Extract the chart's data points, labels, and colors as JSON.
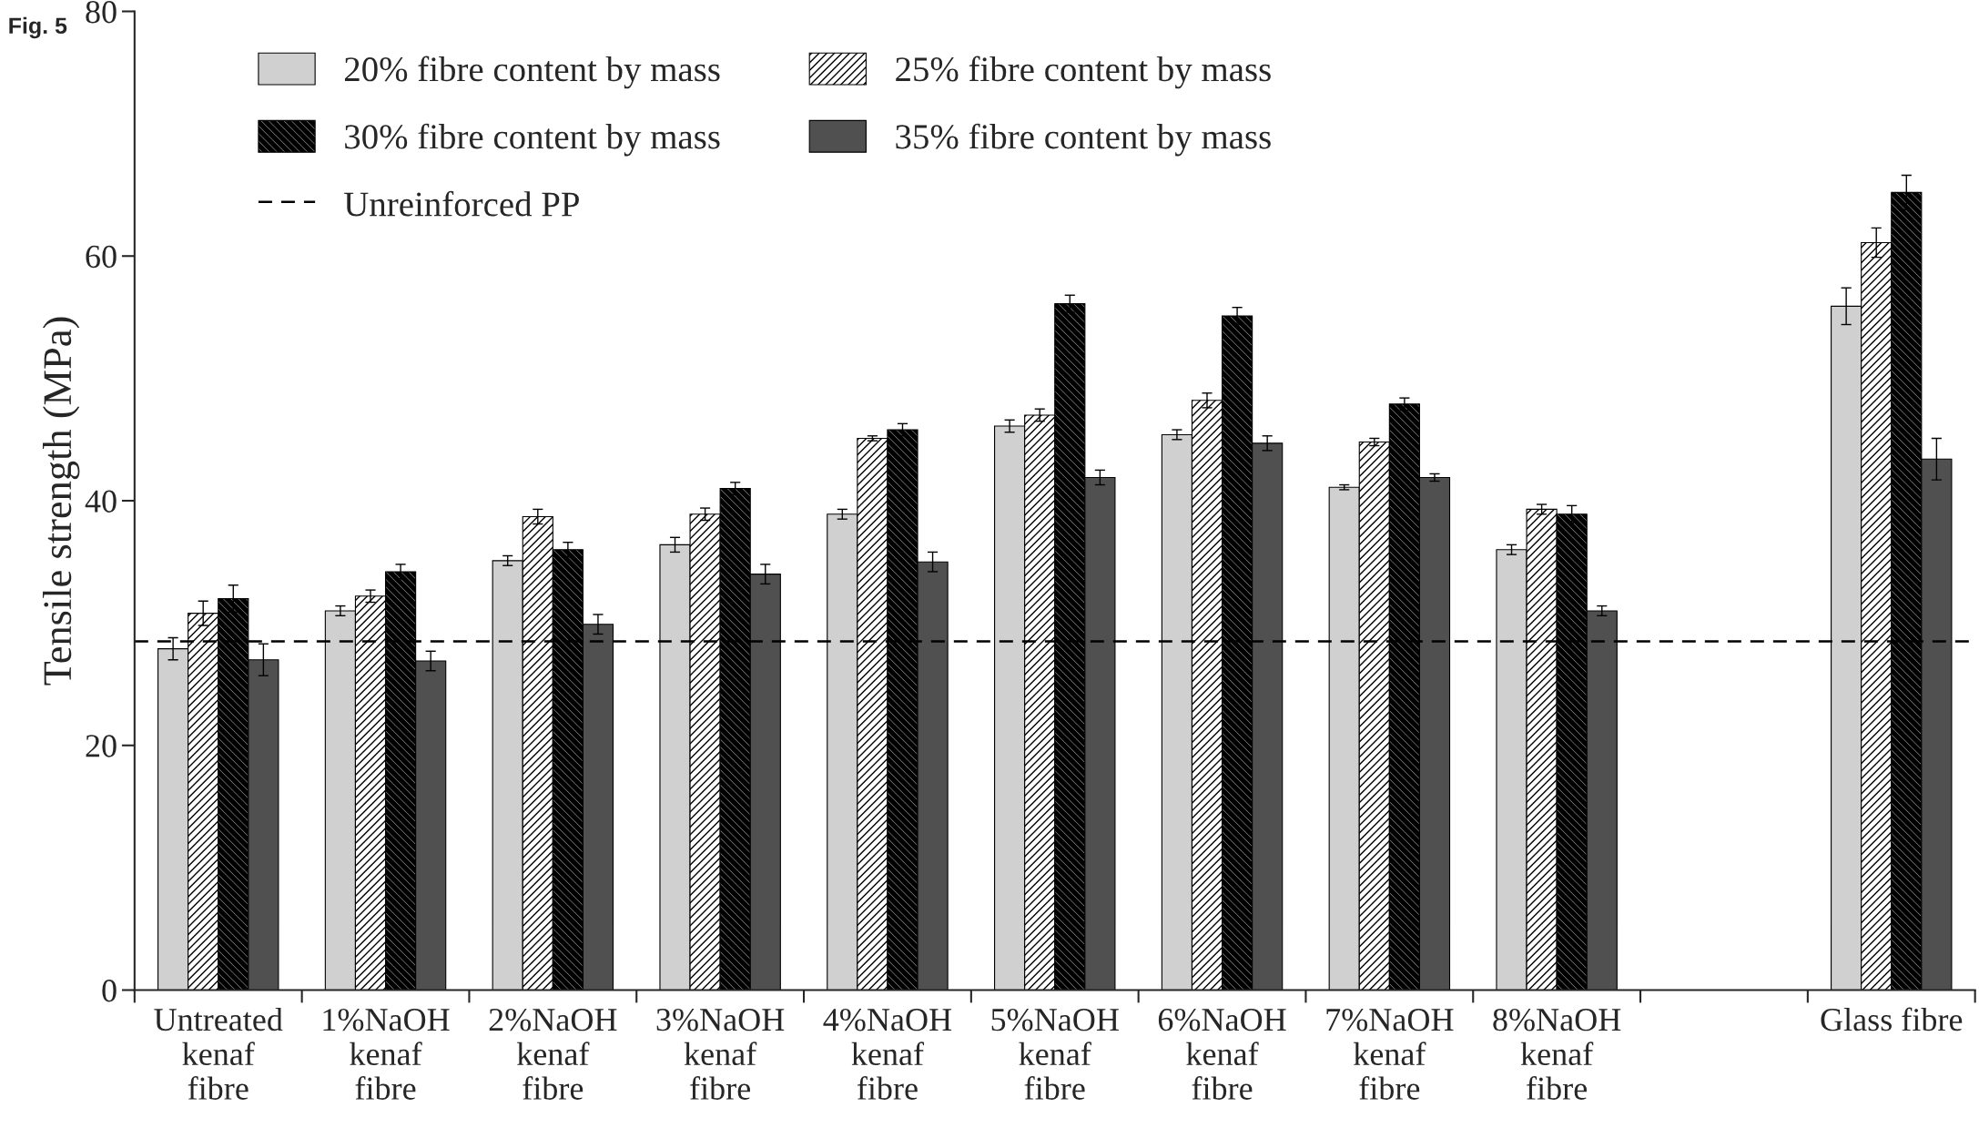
{
  "chart_data": {
    "type": "bar",
    "ylabel": "Tensile strength (MPa)",
    "categories": [
      "Untreated\nkenaf\nfibre",
      "1%NaOH\nkenaf\nfibre",
      "2%NaOH\nkenaf\nfibre",
      "3%NaOH\nkenaf\nfibre",
      "4%NaOH\nkenaf\nfibre",
      "5%NaOH\nkenaf\nfibre",
      "6%NaOH\nkenaf\nfibre",
      "7%NaOH\nkenaf\nfibre",
      "8%NaOH\nkenaf\nfibre",
      null,
      "Glass fibre"
    ],
    "series": [
      {
        "name": "20% fibre content by mass",
        "color": "#d0d0d0",
        "values": [
          27.9,
          31.0,
          35.1,
          36.4,
          38.9,
          46.1,
          45.4,
          41.1,
          36.0,
          null,
          55.9
        ],
        "errors": [
          0.9,
          0.4,
          0.4,
          0.6,
          0.4,
          0.5,
          0.4,
          0.2,
          0.4,
          null,
          1.5
        ]
      },
      {
        "name": "25% fibre content by mass",
        "color": "#000000",
        "values": [
          30.8,
          32.2,
          38.7,
          38.9,
          45.1,
          47.0,
          48.2,
          44.8,
          39.3,
          null,
          61.1
        ],
        "errors": [
          1.0,
          0.5,
          0.6,
          0.5,
          0.2,
          0.5,
          0.6,
          0.3,
          0.4,
          null,
          1.2
        ]
      },
      {
        "name": "30% fibre content by mass",
        "color": "#000000",
        "values": [
          32.0,
          34.2,
          36.0,
          41.0,
          45.8,
          56.1,
          55.1,
          47.9,
          38.9,
          null,
          65.2
        ],
        "errors": [
          1.1,
          0.6,
          0.6,
          0.5,
          0.5,
          0.7,
          0.7,
          0.5,
          0.7,
          null,
          1.4
        ]
      },
      {
        "name": "35% fibre content by mass",
        "color": "#505050",
        "values": [
          27.0,
          26.9,
          29.9,
          34.0,
          35.0,
          41.9,
          44.7,
          41.9,
          31.0,
          null,
          43.4
        ],
        "errors": [
          1.3,
          0.8,
          0.8,
          0.8,
          0.8,
          0.6,
          0.6,
          0.3,
          0.4,
          null,
          1.7
        ]
      }
    ],
    "ylim": [
      0,
      80
    ],
    "yticks": [
      0,
      20,
      40,
      60,
      80
    ],
    "grid": false,
    "legend": "top left",
    "ref_lines": [
      {
        "axis": "y",
        "value": 28.5,
        "label": "Unreinforced PP",
        "color": "#000000",
        "line_style": "dashed"
      }
    ],
    "annotations": [
      "Fig. 5"
    ]
  }
}
